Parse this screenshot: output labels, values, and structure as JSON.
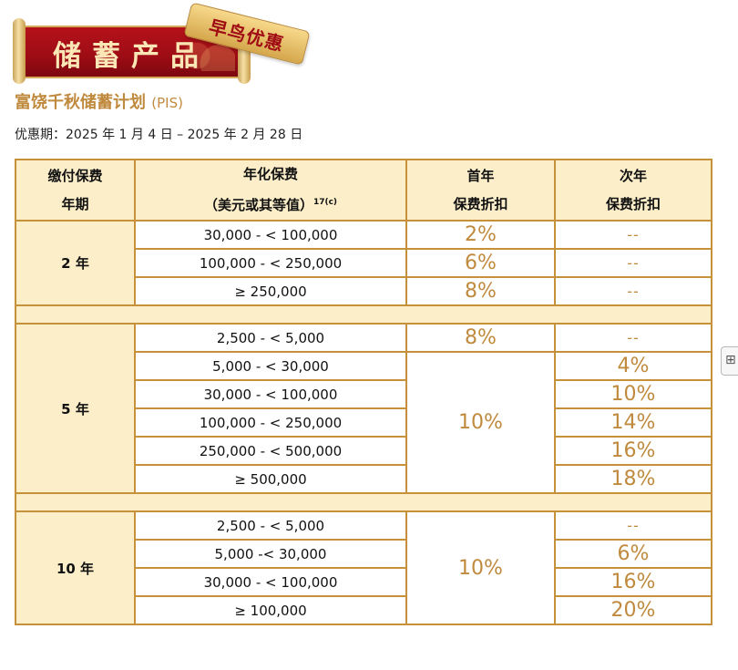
{
  "banner": {
    "title": "储蓄产品",
    "badge": "早鸟优惠"
  },
  "plan": {
    "name": "富饶千秋储蓄计划",
    "abbr": "(PIS)"
  },
  "period": "优惠期：2025 年 1 月 4 日 – 2025 年 2 月 28 日",
  "table": {
    "headers": {
      "term_line1": "缴付保费",
      "term_line2": "年期",
      "premium_line1": "年化保费",
      "premium_line2": "（美元或其等值）",
      "premium_note": "17(c)",
      "first_line1": "首年",
      "first_line2": "保费折扣",
      "second_line1": "次年",
      "second_line2": "保费折扣"
    },
    "groups": [
      {
        "term": "2 年",
        "rows": [
          {
            "range": "30,000 - < 100,000",
            "first": "2%",
            "second": "--"
          },
          {
            "range": "100,000 - < 250,000",
            "first": "6%",
            "second": "--"
          },
          {
            "range": "≥ 250,000",
            "first": "8%",
            "second": "--"
          }
        ]
      },
      {
        "term": "5 年",
        "first_merged": "10%",
        "rows": [
          {
            "range": "2,500 - < 5,000",
            "first": "8%",
            "second": "--"
          },
          {
            "range": "5,000 - < 30,000",
            "second": "4%"
          },
          {
            "range": "30,000 - < 100,000",
            "second": "10%"
          },
          {
            "range": "100,000 - < 250,000",
            "second": "14%"
          },
          {
            "range": "250,000 - < 500,000",
            "second": "16%"
          },
          {
            "range": "≥ 500,000",
            "second": "18%"
          }
        ]
      },
      {
        "term": "10 年",
        "first_merged": "10%",
        "rows": [
          {
            "range": "2,500 - < 5,000",
            "second": "--"
          },
          {
            "range": "5,000 -< 30,000",
            "second": "6%"
          },
          {
            "range": "30,000 - < 100,000",
            "second": "16%"
          },
          {
            "range": "≥ 100,000",
            "second": "20%"
          }
        ]
      }
    ]
  },
  "edge_icon": "translate-icon"
}
